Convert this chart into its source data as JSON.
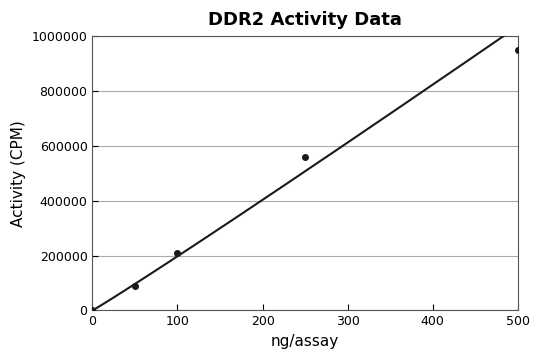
{
  "title": "DDR2 Activity Data",
  "xlabel": "ng/assay",
  "ylabel": "Activity (CPM)",
  "x_data": [
    0,
    50,
    100,
    250,
    500
  ],
  "y_data": [
    0,
    90000,
    210000,
    560000,
    950000
  ],
  "xlim": [
    0,
    500
  ],
  "ylim": [
    0,
    1000000
  ],
  "xticks": [
    0,
    100,
    200,
    300,
    400,
    500
  ],
  "yticks": [
    0,
    200000,
    400000,
    600000,
    800000,
    1000000
  ],
  "line_color": "#1a1a1a",
  "marker_style": "o",
  "marker_size": 4,
  "marker_color": "#1a1a1a",
  "grid_color": "#aaaaaa",
  "background_color": "#ffffff",
  "title_fontsize": 13,
  "title_fontweight": "bold",
  "label_fontsize": 11,
  "tick_fontsize": 9,
  "line_width": 1.5,
  "figsize": [
    5.41,
    3.6
  ],
  "dpi": 100
}
